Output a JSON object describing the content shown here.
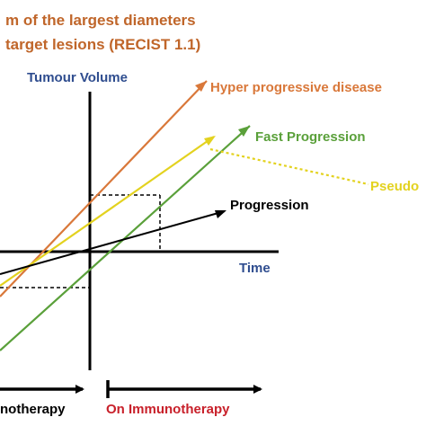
{
  "title": {
    "line1": "m of the largest diameters",
    "line2": "target lesions (RECIST 1.1)",
    "color": "#c0662a"
  },
  "axes": {
    "y_label": "Tumour Volume",
    "y_label_color": "#2f4d8f",
    "x_label": "Time",
    "x_label_color": "#2f4d8f",
    "axis_color": "#000000"
  },
  "curves": {
    "hyper": {
      "label": "Hyper progressive disease",
      "color": "#d9783a"
    },
    "fast": {
      "label": "Fast Progression",
      "color": "#5aa03a"
    },
    "pseudo": {
      "label": "Pseudo",
      "color": "#e3d21f"
    },
    "progression": {
      "label": "Progression",
      "color": "#000000"
    }
  },
  "phases": {
    "before": {
      "label": "notherapy",
      "color": "#000000"
    },
    "on": {
      "label": "On Immunotherapy",
      "color": "#c8202a"
    }
  }
}
